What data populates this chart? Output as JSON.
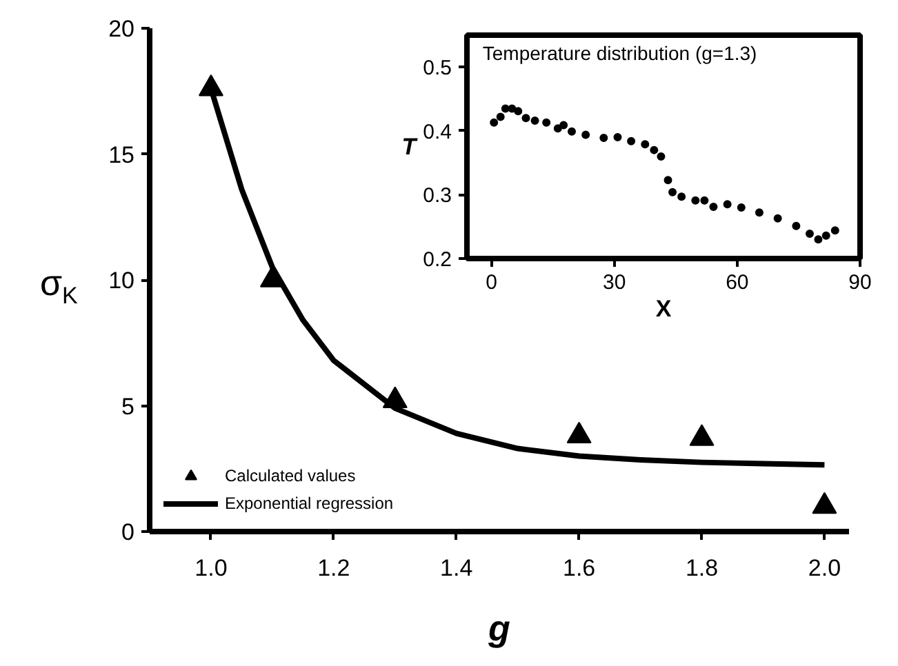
{
  "chart_data": [
    {
      "type": "scatter",
      "xlabel": "g",
      "ylabel": "σ$_{K}$",
      "xlim": [
        0.9,
        2.04
      ],
      "ylim": [
        0,
        20
      ],
      "xticks": [
        {
          "value": 1.0,
          "label": "1.0"
        },
        {
          "value": 1.2,
          "label": "1.2"
        },
        {
          "value": 1.4,
          "label": "1.4"
        },
        {
          "value": 1.6,
          "label": "1.6"
        },
        {
          "value": 1.8,
          "label": "1.8"
        },
        {
          "value": 2.0,
          "label": "2.0"
        }
      ],
      "yticks": [
        0,
        5,
        10,
        15,
        20
      ],
      "grid": false,
      "legend": "bottom left",
      "series": [
        {
          "name": "Calculated values",
          "type": "scatter",
          "marker": "triangle",
          "color": "#000000",
          "x": [
            1.0,
            1.1,
            1.3,
            1.6,
            1.8,
            2.0
          ],
          "values": [
            17.6,
            10.0,
            5.2,
            3.8,
            3.7,
            1.0
          ]
        },
        {
          "name": "Exponential regression",
          "type": "line",
          "color": "#000000",
          "x": [
            1.0,
            1.05,
            1.1,
            1.15,
            1.2,
            1.3,
            1.4,
            1.5,
            1.6,
            1.7,
            1.8,
            1.9,
            2.0
          ],
          "values": [
            17.6,
            13.6,
            10.5,
            8.4,
            6.8,
            4.9,
            3.9,
            3.3,
            3.0,
            2.85,
            2.75,
            2.7,
            2.65
          ]
        }
      ]
    },
    {
      "type": "scatter",
      "title": "Temperature distribution (g=1.3)",
      "xlabel": "X",
      "ylabel": "T",
      "xlim": [
        -6,
        90
      ],
      "ylim": [
        0.2,
        0.55
      ],
      "xticks": [
        0,
        30,
        60,
        90
      ],
      "yticks": [
        0.2,
        0.3,
        0.4,
        0.5
      ],
      "grid": false,
      "marker": "circle",
      "color": "#000000",
      "x": [
        0.6,
        2.2,
        3.4,
        5,
        6.5,
        8.4,
        10.6,
        13.4,
        16.2,
        17.6,
        19.6,
        23,
        27.4,
        30.8,
        34.1,
        37.5,
        39.7,
        41.4,
        43.1,
        44.2,
        46.4,
        49.8,
        52,
        54.2,
        57.6,
        61,
        65.4,
        69.9,
        74.4,
        77.7,
        79.8,
        81.7,
        83.9
      ],
      "values": [
        0.413,
        0.422,
        0.435,
        0.435,
        0.431,
        0.42,
        0.416,
        0.413,
        0.404,
        0.409,
        0.399,
        0.394,
        0.389,
        0.39,
        0.384,
        0.379,
        0.37,
        0.36,
        0.323,
        0.304,
        0.297,
        0.291,
        0.291,
        0.281,
        0.285,
        0.28,
        0.272,
        0.263,
        0.251,
        0.239,
        0.23,
        0.236,
        0.244
      ]
    }
  ]
}
